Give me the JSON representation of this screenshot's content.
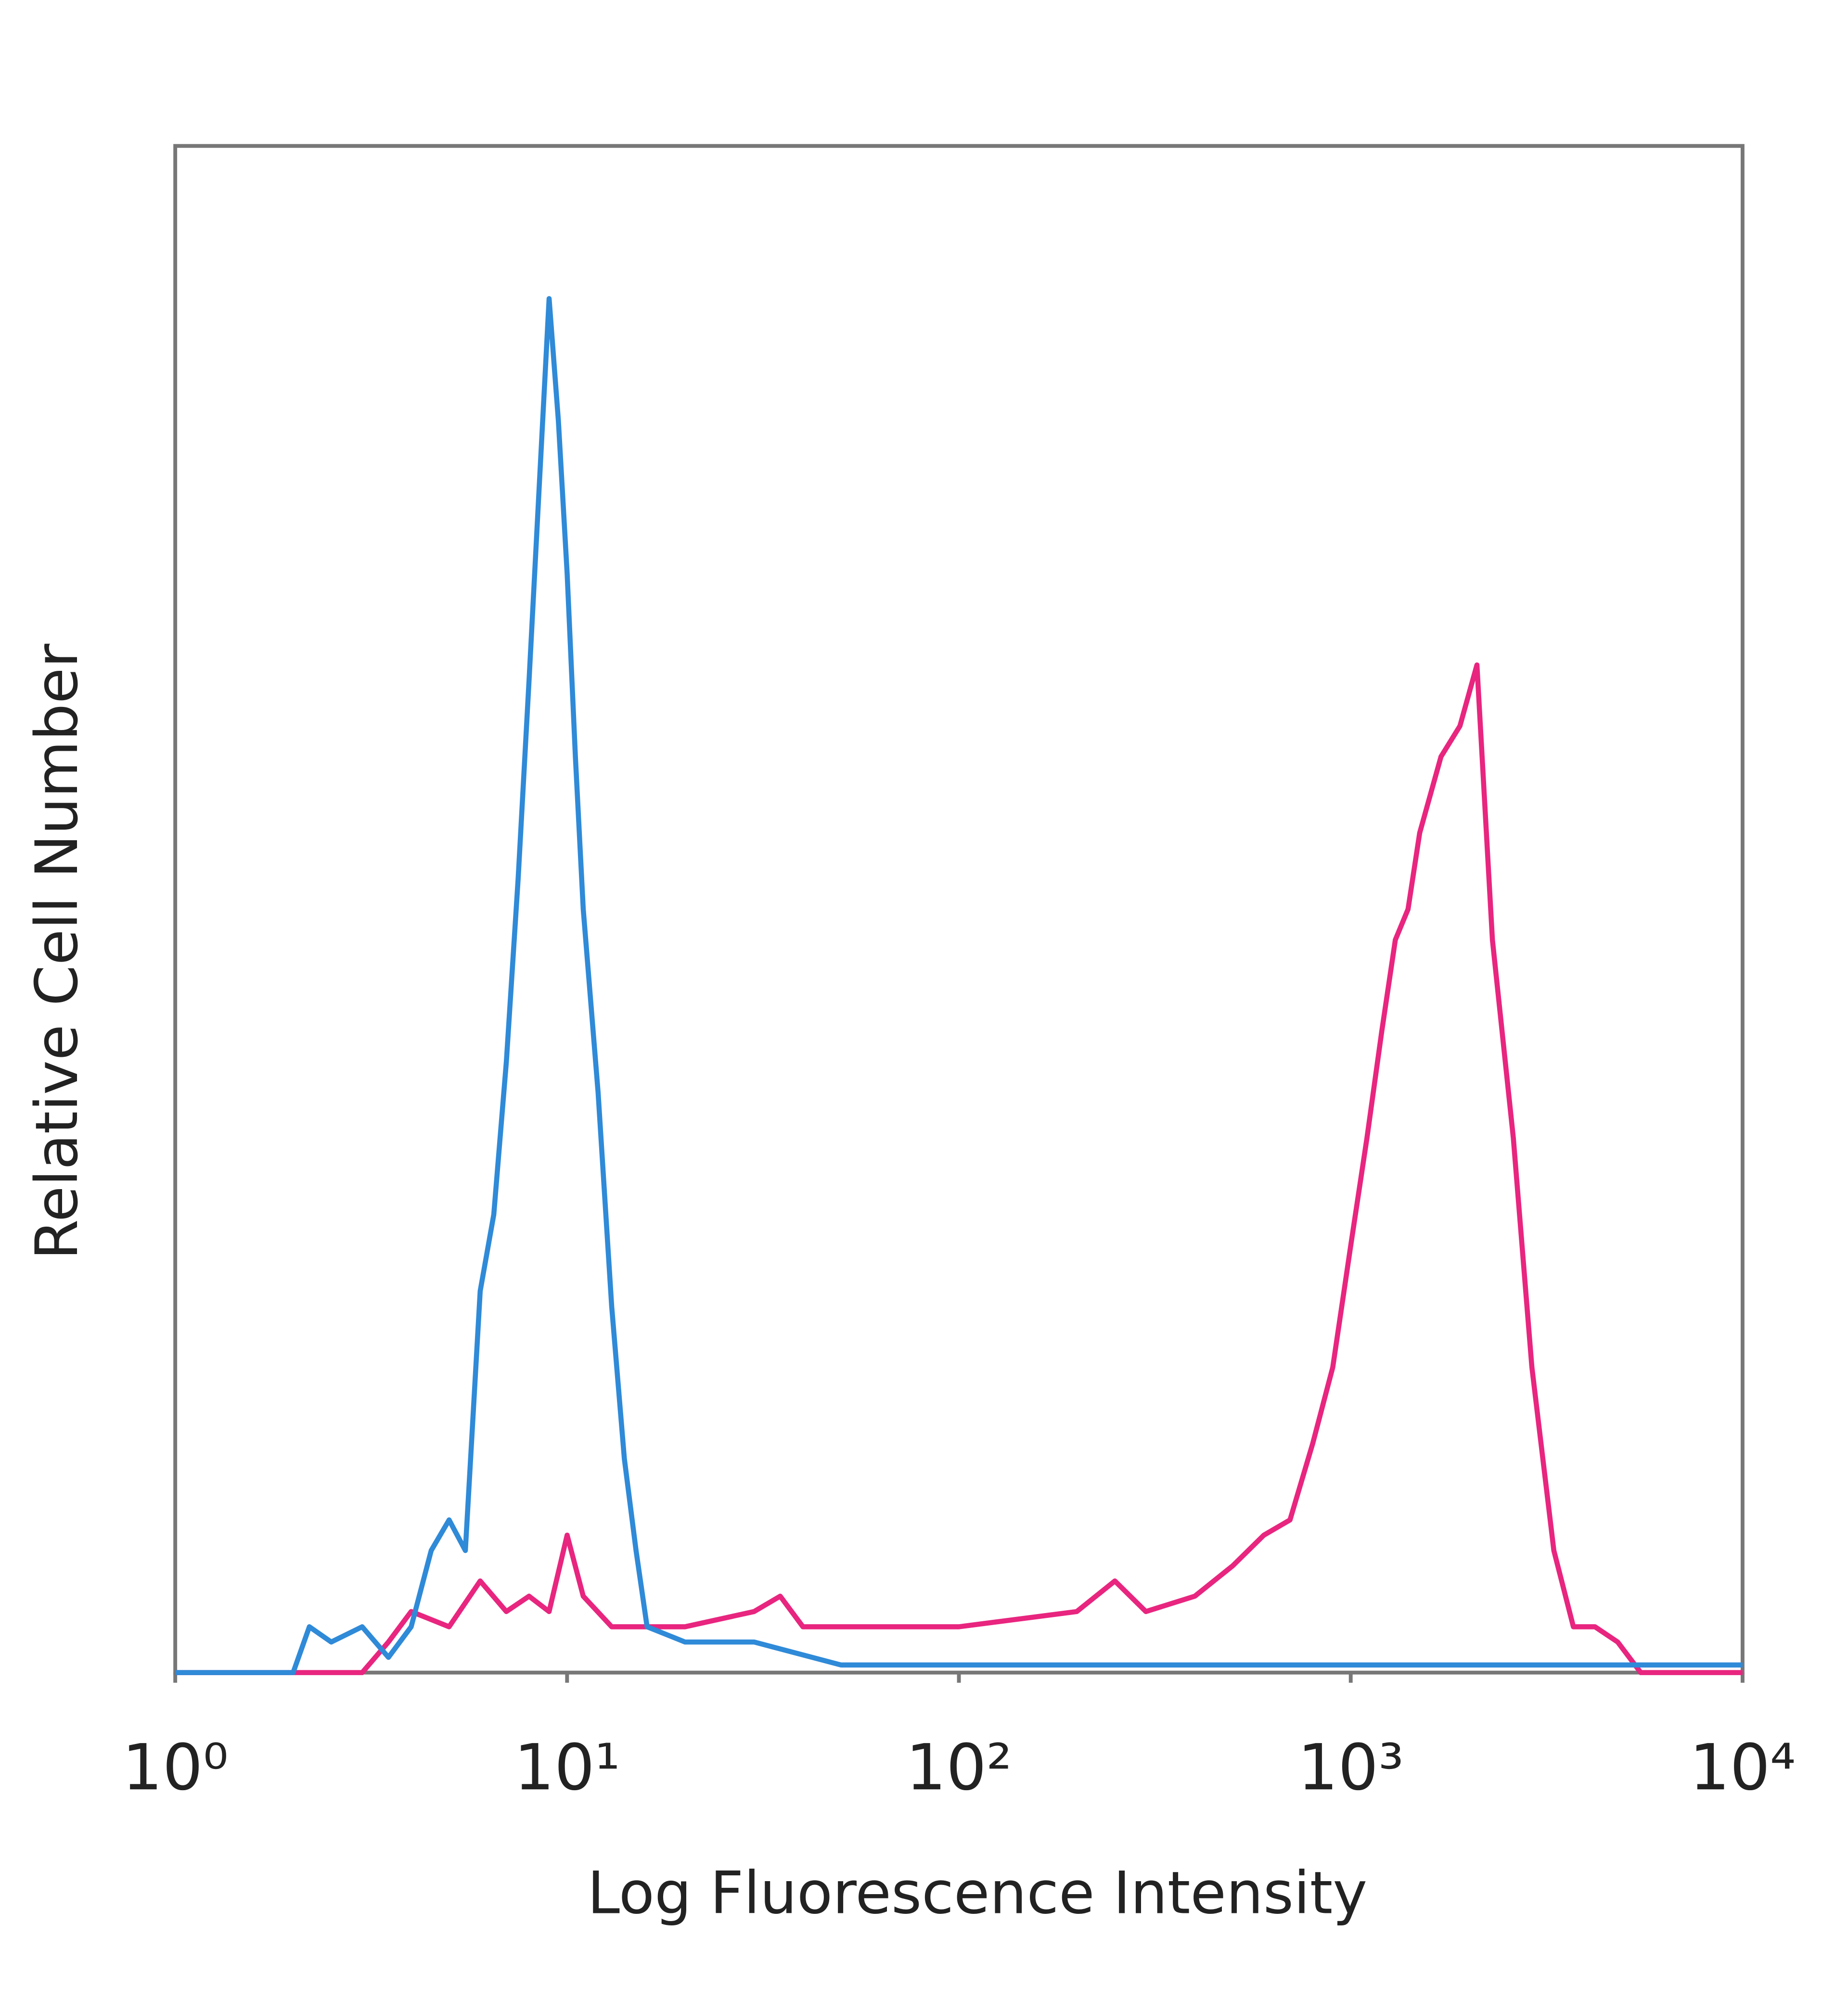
{
  "chart_data": {
    "type": "line",
    "x_label": "Log Fluorescence Intensity",
    "y_label": "Relative Cell Number",
    "xscale": "log",
    "xlim": [
      1,
      10000
    ],
    "xticks": [
      {
        "value": 1,
        "label": "10⁰"
      },
      {
        "value": 10,
        "label": "10¹"
      },
      {
        "value": 100,
        "label": "10²"
      },
      {
        "value": 1000,
        "label": "10³"
      },
      {
        "value": 10000,
        "label": "10⁴"
      }
    ],
    "ylim": [
      0,
      100
    ],
    "series": [
      {
        "color": "#2f8ad8",
        "x": [
          1,
          2,
          2.2,
          2.5,
          3,
          3.5,
          4,
          4.5,
          5,
          5.5,
          6,
          6.5,
          7,
          7.5,
          8,
          8.5,
          9,
          9.5,
          10,
          10.5,
          11,
          12,
          13,
          14,
          15,
          16,
          20,
          30,
          50,
          100,
          1000,
          10000
        ],
        "values": [
          0,
          0,
          3,
          2,
          3,
          1,
          3,
          8,
          10,
          8,
          25,
          30,
          40,
          52,
          65,
          78,
          90,
          82,
          72,
          60,
          50,
          38,
          24,
          14,
          8,
          3,
          2,
          2,
          0.5,
          0.5,
          0.5,
          0.5
        ]
      },
      {
        "color": "#e8257f",
        "x": [
          1,
          3,
          3.5,
          4,
          5,
          6,
          7,
          8,
          9,
          10,
          11,
          13,
          15,
          20,
          30,
          35,
          40,
          60,
          100,
          200,
          250,
          300,
          400,
          500,
          600,
          700,
          800,
          900,
          1000,
          1100,
          1200,
          1300,
          1400,
          1500,
          1700,
          1900,
          2100,
          2300,
          2600,
          2900,
          3300,
          3700,
          4200,
          4800,
          5500,
          10000
        ],
        "values": [
          0,
          0,
          2,
          4,
          3,
          6,
          4,
          5,
          4,
          9,
          5,
          3,
          3,
          3,
          4,
          5,
          3,
          3,
          3,
          4,
          6,
          4,
          5,
          7,
          9,
          10,
          15,
          20,
          28,
          35,
          42,
          48,
          50,
          55,
          60,
          62,
          66,
          48,
          35,
          20,
          8,
          3,
          3,
          2,
          0,
          0
        ]
      }
    ]
  }
}
